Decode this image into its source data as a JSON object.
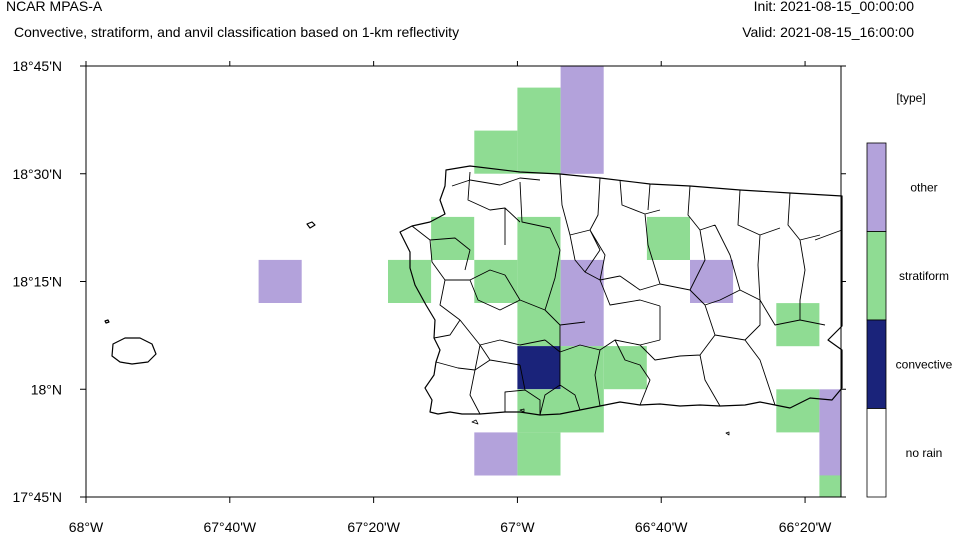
{
  "header": {
    "model": "NCAR MPAS-A",
    "subtitle": "Convective, stratiform, and anvil classification based on 1-km reflectivity",
    "init": "Init: 2021-08-15_00:00:00",
    "valid": "Valid: 2021-08-15_16:00:00"
  },
  "axes": {
    "lon_ticks": [
      {
        "value": -68.0,
        "label": "68°W"
      },
      {
        "value": -67.6667,
        "label": "67°40'W"
      },
      {
        "value": -67.3333,
        "label": "67°20'W"
      },
      {
        "value": -67.0,
        "label": "67°W"
      },
      {
        "value": -66.6667,
        "label": "66°40'W"
      },
      {
        "value": -66.3333,
        "label": "66°20'W"
      }
    ],
    "lat_ticks": [
      {
        "value": 18.75,
        "label": "18°45'N"
      },
      {
        "value": 18.5,
        "label": "18°30'N"
      },
      {
        "value": 18.25,
        "label": "18°15'N"
      },
      {
        "value": 18.0,
        "label": "18°N"
      },
      {
        "value": 17.75,
        "label": "17°45'N"
      }
    ],
    "lon_range": [
      -68.0,
      -66.25
    ],
    "lat_range": [
      17.75,
      18.75
    ]
  },
  "legend": {
    "title": "[type]",
    "classes": [
      {
        "label": "other",
        "color": "#b3a2db"
      },
      {
        "label": "stratiform",
        "color": "#8fdc93"
      },
      {
        "label": "convective",
        "color": "#1a237a"
      },
      {
        "label": "no rain",
        "color": "#ffffff"
      }
    ]
  },
  "colors": {
    "other": "#b3a2db",
    "stratiform": "#8fdc93",
    "convective": "#1a237a"
  },
  "chart_data": {
    "type": "heatmap",
    "title": "Convective, stratiform, and anvil classification based on 1-km reflectivity",
    "categories": [
      "no rain",
      "convective",
      "stratiform",
      "other"
    ],
    "xlim": [
      -68.0,
      -66.25
    ],
    "ylim": [
      17.75,
      18.75
    ],
    "cells": [
      {
        "lon": [
          -66.9,
          -66.8
        ],
        "lat": [
          18.5,
          18.75
        ],
        "class": "other"
      },
      {
        "lon": [
          -67.0,
          -66.9
        ],
        "lat": [
          18.5,
          18.7
        ],
        "class": "stratiform"
      },
      {
        "lon": [
          -67.1,
          -67.0
        ],
        "lat": [
          18.5,
          18.6
        ],
        "class": "stratiform"
      },
      {
        "lon": [
          -67.2,
          -67.1
        ],
        "lat": [
          18.3,
          18.4
        ],
        "class": "stratiform"
      },
      {
        "lon": [
          -67.0,
          -66.9
        ],
        "lat": [
          18.1,
          18.4
        ],
        "class": "stratiform"
      },
      {
        "lon": [
          -66.7,
          -66.6
        ],
        "lat": [
          18.3,
          18.4
        ],
        "class": "stratiform"
      },
      {
        "lon": [
          -67.3,
          -67.2
        ],
        "lat": [
          18.2,
          18.3
        ],
        "class": "stratiform"
      },
      {
        "lon": [
          -67.1,
          -67.0
        ],
        "lat": [
          18.2,
          18.3
        ],
        "class": "stratiform"
      },
      {
        "lon": [
          -66.9,
          -66.8
        ],
        "lat": [
          18.1,
          18.3
        ],
        "class": "other"
      },
      {
        "lon": [
          -67.6,
          -67.5
        ],
        "lat": [
          18.2,
          18.3
        ],
        "class": "other"
      },
      {
        "lon": [
          -66.6,
          -66.5
        ],
        "lat": [
          18.2,
          18.3
        ],
        "class": "other"
      },
      {
        "lon": [
          -66.4,
          -66.3
        ],
        "lat": [
          18.1,
          18.2
        ],
        "class": "stratiform"
      },
      {
        "lon": [
          -66.8,
          -66.7
        ],
        "lat": [
          18.0,
          18.1
        ],
        "class": "stratiform"
      },
      {
        "lon": [
          -66.9,
          -66.8
        ],
        "lat": [
          17.9,
          18.1
        ],
        "class": "stratiform"
      },
      {
        "lon": [
          -67.0,
          -66.9
        ],
        "lat": [
          18.0,
          18.1
        ],
        "class": "convective"
      },
      {
        "lon": [
          -67.0,
          -66.8
        ],
        "lat": [
          17.9,
          18.0
        ],
        "class": "stratiform"
      },
      {
        "lon": [
          -67.0,
          -66.9
        ],
        "lat": [
          17.8,
          17.9
        ],
        "class": "stratiform"
      },
      {
        "lon": [
          -67.1,
          -67.0
        ],
        "lat": [
          17.8,
          17.9
        ],
        "class": "other"
      },
      {
        "lon": [
          -66.4,
          -66.3
        ],
        "lat": [
          17.9,
          18.0
        ],
        "class": "stratiform"
      },
      {
        "lon": [
          -66.3,
          -66.25
        ],
        "lat": [
          17.8,
          18.0
        ],
        "class": "other"
      },
      {
        "lon": [
          -66.3,
          -66.25
        ],
        "lat": [
          17.75,
          17.8
        ],
        "class": "stratiform"
      }
    ]
  }
}
